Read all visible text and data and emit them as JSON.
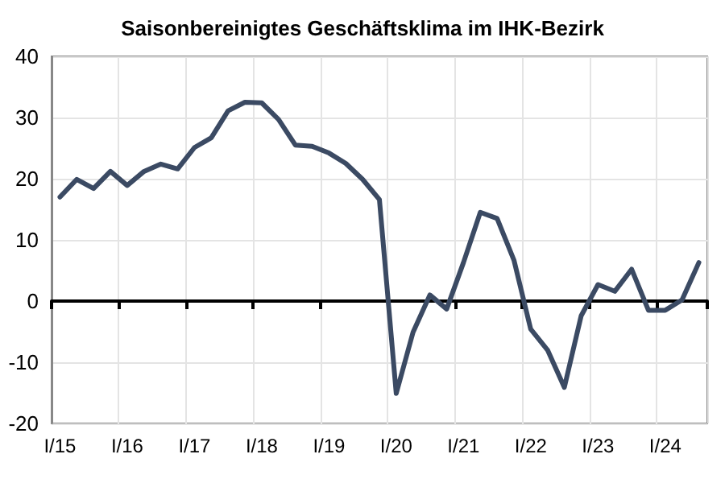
{
  "chart_data": {
    "type": "line",
    "title": "Saisonbereinigtes Geschäftsklima im IHK-Bezirk",
    "categories": [
      "I/15",
      null,
      null,
      null,
      "I/16",
      null,
      null,
      null,
      "I/17",
      null,
      null,
      null,
      "I/18",
      null,
      null,
      null,
      "I/19",
      null,
      null,
      null,
      "I/20",
      null,
      null,
      null,
      "I/21",
      null,
      null,
      null,
      "I/22",
      null,
      null,
      null,
      "I/23",
      null,
      null,
      null,
      "I/24",
      null,
      null
    ],
    "series": [
      {
        "color": "#3b4a63",
        "values": [
          17.0,
          19.9,
          18.4,
          21.2,
          18.9,
          21.2,
          22.4,
          21.6,
          25.1,
          26.7,
          31.1,
          32.5,
          32.4,
          29.7,
          25.5,
          25.3,
          24.2,
          22.5,
          19.9,
          16.6,
          -15.1,
          -5.1,
          1.0,
          -1.3,
          6.3,
          14.5,
          13.5,
          6.7,
          -4.6,
          -8.0,
          -14.1,
          -2.4,
          2.7,
          1.6,
          5.2,
          -1.5,
          -1.5,
          0.2,
          6.3
        ]
      }
    ],
    "ylim": [
      -20,
      40
    ],
    "yticks": [
      -20,
      -10,
      0,
      10,
      20,
      30,
      40
    ],
    "grid": true,
    "marker": "none",
    "line_style": "solid"
  }
}
